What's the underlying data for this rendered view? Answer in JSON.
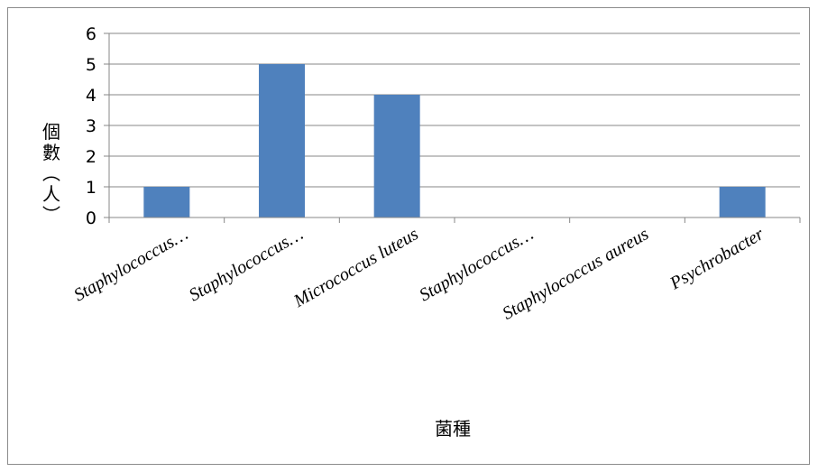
{
  "chart_data": {
    "type": "bar",
    "categories": [
      "Staphylococcus…",
      "Staphylococcus…",
      "Micrococcus luteus",
      "Staphylococcus…",
      "Staphylococcus aureus",
      "Psychrobacter"
    ],
    "series": [
      {
        "values": [
          1,
          5,
          4,
          0,
          0,
          1
        ],
        "color": "#4f81bd"
      }
    ],
    "xlabel": "菌種",
    "ylabel": "個數（人）",
    "ylim": [
      0,
      6
    ],
    "yticks": [
      "0",
      "1",
      "2",
      "3",
      "4",
      "5",
      "6"
    ],
    "grid": true,
    "gridline_color": "#878787",
    "legend": "none"
  }
}
